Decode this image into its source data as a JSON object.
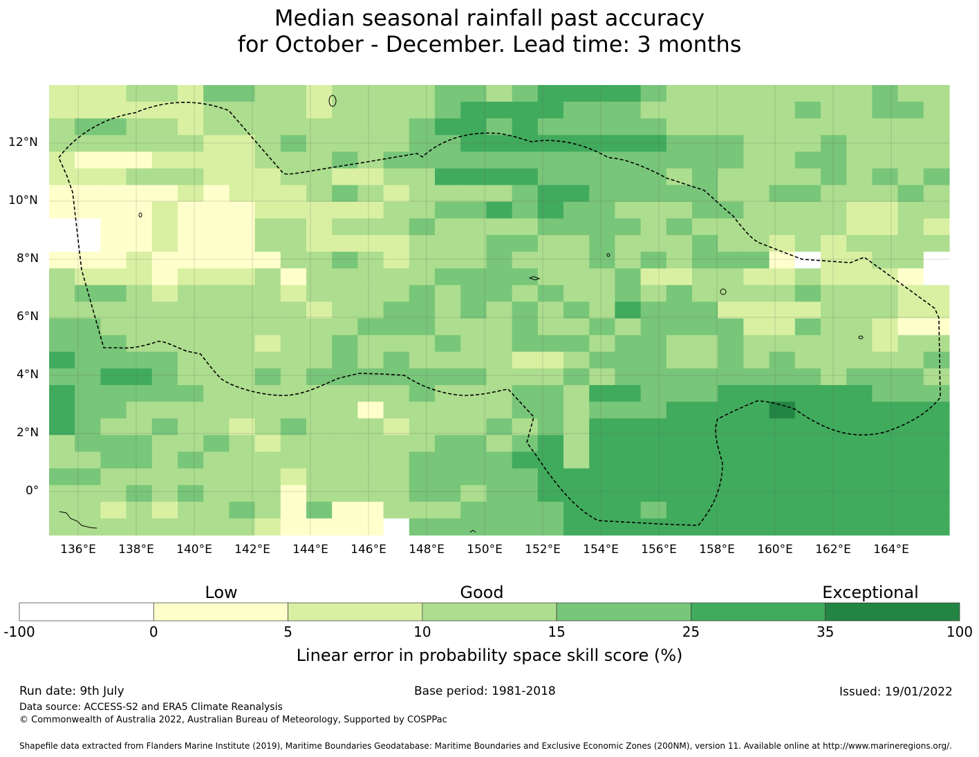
{
  "title": {
    "line1": "Median seasonal rainfall past accuracy",
    "line2": "for October - December. Lead time: 3 months"
  },
  "map": {
    "lon_range": [
      135,
      166
    ],
    "lat_range": [
      -1.5,
      14
    ],
    "lon_ticks": [
      "136°E",
      "138°E",
      "140°E",
      "142°E",
      "144°E",
      "146°E",
      "148°E",
      "150°E",
      "152°E",
      "154°E",
      "156°E",
      "158°E",
      "160°E",
      "162°E",
      "164°E"
    ],
    "lat_ticks": [
      "12°N",
      "10°N",
      "8°N",
      "6°N",
      "4°N",
      "2°N",
      "0°"
    ],
    "grid_rows": [
      "22233244332333344345555433333333433",
      "22222233332333345555444333333433443",
      "34433233333333455454444433333333333",
      "33333322343333445555555544433343333",
      "21112222333434444444444444433443333",
      "22233322233223355554444434333343434",
      "11111212223432333345544444334433343",
      "11112111222223344545443334433332233",
      "00112111332333433334444343333332232",
      "00112111332222333443343334332323333",
      "11121111133432333433343434441022330",
      "32221222313333344443334223322322210",
      "34432333323333434434334343333433322",
      "33333333332334434343435444222233322",
      "44333333333344433343343444422433211",
      "44433333233433343344434433433333233",
      "54444333333434333322344433434333334",
      "44554333434444444333434444444434443",
      "54444433333333433344355444555555444",
      "54433333333313333344344455556555555",
      "54334332343332333434355555555555555",
      "34443343233333344345355555555555555",
      "33443433333333444455355555555555555",
      "44333333323333444445555555555555555",
      "33343433313333443445555555555555555",
      "33232334314113334444555455555555555",
      "33333333211110444444555555555555555"
    ]
  },
  "colorbar": {
    "category_labels": [
      "Low",
      "Good",
      "Exceptional"
    ],
    "ticks": [
      "-100",
      "0",
      "5",
      "10",
      "15",
      "25",
      "35",
      "100"
    ],
    "colors": [
      "#ffffff",
      "#ffffcc",
      "#d9f0a3",
      "#addd8e",
      "#78c679",
      "#41ab5d",
      "#238443"
    ],
    "label": "Linear error in probability space skill score (%)"
  },
  "footer": {
    "run_date": "Run date: 9th July",
    "base_period": "Base period: 1981-2018",
    "issued": "Issued: 19/01/2022",
    "data_source": "Data source: ACCESS-S2 and ERA5 Climate Reanalysis",
    "copyright": "© Commonwealth of Australia 2022, Australian Bureau of Meteorology, Supported by COSPPac",
    "shapefile": "Shapefile data extracted from Flanders Marine Institute (2019), Maritime Boundaries Geodatabase: Maritime Boundaries and Exclusive Economic Zones (200NM), version 11. Available online at http://www.marineregions.org/."
  }
}
